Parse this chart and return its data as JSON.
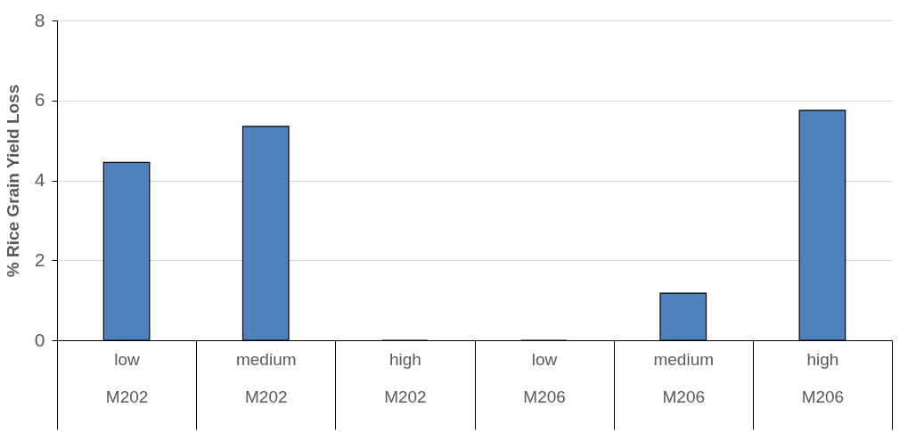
{
  "chart_data": {
    "type": "bar",
    "ylabel": "% Rice Grain Yield Loss",
    "categories": [
      "low\nM202",
      "medium\nM202",
      "high\nM202",
      "low\nM206",
      "medium\nM206",
      "high\nM206"
    ],
    "values": [
      4.45,
      5.35,
      0,
      0,
      1.18,
      5.75
    ],
    "color": "#4f81bd",
    "ylim": [
      0,
      8
    ],
    "yticks": [
      0,
      2,
      4,
      6,
      8
    ],
    "grid": "y"
  }
}
